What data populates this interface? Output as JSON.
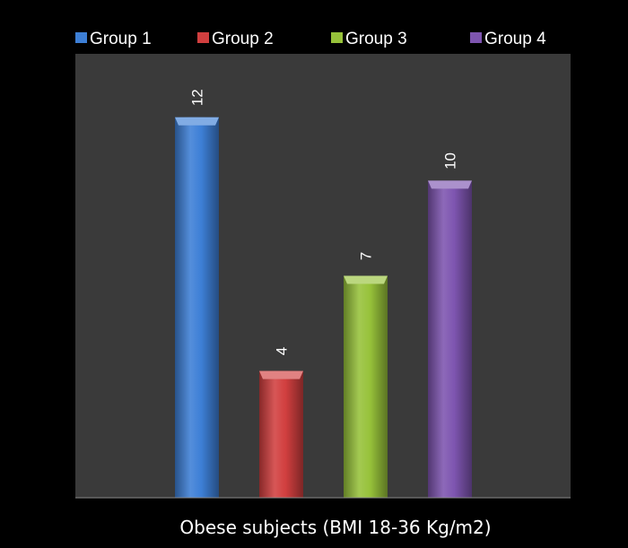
{
  "chart_data": {
    "type": "bar",
    "categories": [
      "Obese subjects (BMI 18-36 Kg/m2)"
    ],
    "series": [
      {
        "name": "Group 1",
        "values": [
          12
        ],
        "color": "#3d7fd6"
      },
      {
        "name": "Group 2",
        "values": [
          4
        ],
        "color": "#d13f3f"
      },
      {
        "name": "Group 3",
        "values": [
          7
        ],
        "color": "#97c23a"
      },
      {
        "name": "Group 4",
        "values": [
          10
        ],
        "color": "#7e55b0"
      }
    ],
    "xlabel": "Obese subjects (BMI 18-36 Kg/m2)",
    "ylabel": "",
    "ylim": [
      0,
      14
    ],
    "grid": false,
    "legend_position": "top",
    "data_labels": true,
    "data_label_rotation": "vertical",
    "background_color": "#000000",
    "plot_area_color": "#3a3a3a"
  }
}
